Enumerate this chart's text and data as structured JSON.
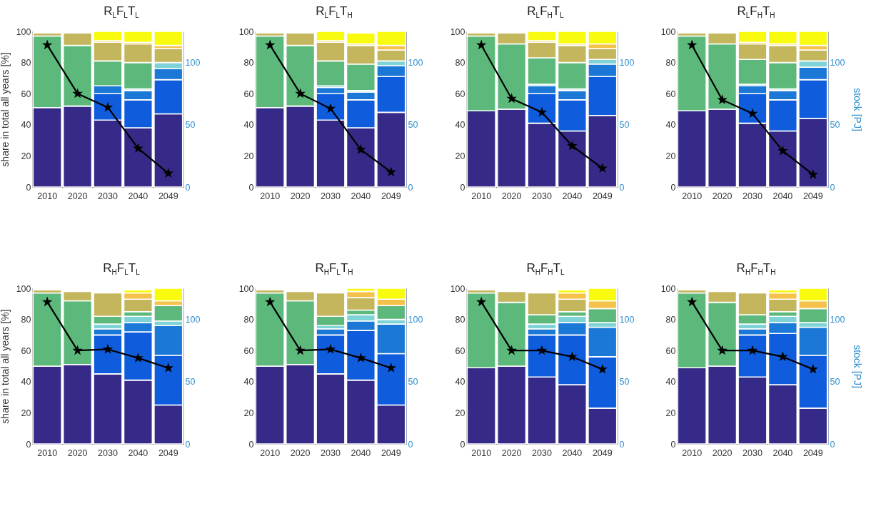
{
  "chart_data": [
    {
      "type": "bar",
      "stacked": true,
      "title": "R$_{L}$F$_{L}$T$_{L}$",
      "ylabel": "share in total all years [%]",
      "categories": [
        "2010",
        "2020",
        "2030",
        "2040",
        "2049"
      ],
      "ylim": [
        0,
        100
      ],
      "yticks": [
        0,
        20,
        40,
        60,
        80,
        100
      ],
      "y2lim": [
        0,
        125
      ],
      "y2ticks": [
        0,
        50,
        100
      ],
      "marker": "star",
      "series": [
        {
          "color": "#352a87",
          "values": [
            51,
            52,
            43,
            38,
            47
          ]
        },
        {
          "color": "#0f5cdd",
          "values": [
            null,
            null,
            17,
            18,
            22
          ]
        },
        {
          "color": "#1c78d6",
          "values": [
            null,
            null,
            5,
            6,
            7
          ]
        },
        {
          "color": "#7fd3d6",
          "values": [
            null,
            null,
            null,
            1,
            4
          ]
        },
        {
          "color": "#5cb97b",
          "values": [
            46,
            39,
            16,
            17,
            null
          ]
        },
        {
          "color": "#c3b65c",
          "values": [
            2,
            8,
            12,
            12,
            9
          ]
        },
        {
          "color": "#f4c24a",
          "values": [
            null,
            null,
            1,
            1,
            2
          ]
        },
        {
          "color": "#f9fb0e",
          "values": [
            null,
            null,
            6,
            7,
            9
          ]
        },
        {
          "type": "line",
          "axis": "y2",
          "color": "#000000",
          "values": [
            114,
            75,
            64,
            31,
            11
          ]
        }
      ]
    },
    {
      "type": "bar",
      "stacked": true,
      "title": "R$_{L}$F$_{L}$T$_{H}$",
      "categories": [
        "2010",
        "2020",
        "2030",
        "2040",
        "2049"
      ],
      "ylim": [
        0,
        100
      ],
      "yticks": [
        0,
        20,
        40,
        60,
        80,
        100
      ],
      "y2lim": [
        0,
        125
      ],
      "y2ticks": [
        0,
        50,
        100
      ],
      "marker": "star",
      "series": [
        {
          "color": "#352a87",
          "values": [
            51,
            52,
            43,
            38,
            48
          ]
        },
        {
          "color": "#0f5cdd",
          "values": [
            null,
            null,
            17,
            18,
            23
          ]
        },
        {
          "color": "#1c78d6",
          "values": [
            null,
            null,
            4,
            5,
            7
          ]
        },
        {
          "color": "#7fd3d6",
          "values": [
            null,
            null,
            1,
            1,
            3
          ]
        },
        {
          "color": "#5cb97b",
          "values": [
            46,
            39,
            16,
            17,
            null
          ]
        },
        {
          "color": "#c3b65c",
          "values": [
            2,
            8,
            12,
            12,
            7
          ]
        },
        {
          "color": "#f4c24a",
          "values": [
            null,
            null,
            1,
            1,
            3
          ]
        },
        {
          "color": "#f9fb0e",
          "values": [
            null,
            null,
            6,
            7,
            9
          ]
        },
        {
          "type": "line",
          "axis": "y2",
          "color": "#000000",
          "values": [
            114,
            75,
            63,
            30,
            12
          ]
        }
      ]
    },
    {
      "type": "bar",
      "stacked": true,
      "title": "R$_{L}$F$_{H}$T$_{L}$",
      "categories": [
        "2010",
        "2020",
        "2030",
        "2040",
        "2049"
      ],
      "ylim": [
        0,
        100
      ],
      "yticks": [
        0,
        20,
        40,
        60,
        80,
        100
      ],
      "y2lim": [
        0,
        125
      ],
      "y2ticks": [
        0,
        50,
        100
      ],
      "marker": "star",
      "series": [
        {
          "color": "#352a87",
          "values": [
            49,
            50,
            41,
            36,
            46
          ]
        },
        {
          "color": "#0f5cdd",
          "values": [
            null,
            null,
            19,
            20,
            25
          ]
        },
        {
          "color": "#1c78d6",
          "values": [
            null,
            null,
            5,
            6,
            8
          ]
        },
        {
          "color": "#7fd3d6",
          "values": [
            null,
            null,
            1,
            1,
            3
          ]
        },
        {
          "color": "#5cb97b",
          "values": [
            48,
            42,
            17,
            17,
            null
          ]
        },
        {
          "color": "#c3b65c",
          "values": [
            2,
            7,
            10,
            11,
            7
          ]
        },
        {
          "color": "#f4c24a",
          "values": [
            null,
            null,
            1,
            1,
            3
          ]
        },
        {
          "color": "#f9fb0e",
          "values": [
            null,
            null,
            6,
            8,
            8
          ]
        },
        {
          "type": "line",
          "axis": "y2",
          "color": "#000000",
          "values": [
            114,
            71,
            60,
            33,
            15
          ]
        }
      ]
    },
    {
      "type": "bar",
      "stacked": true,
      "title": "R$_{L}$F$_{H}$T$_{H}$",
      "y2label": "stock [PJ]",
      "categories": [
        "2010",
        "2020",
        "2030",
        "2040",
        "2049"
      ],
      "ylim": [
        0,
        100
      ],
      "yticks": [
        0,
        20,
        40,
        60,
        80,
        100
      ],
      "y2lim": [
        0,
        125
      ],
      "y2ticks": [
        0,
        50,
        100
      ],
      "marker": "star",
      "series": [
        {
          "color": "#352a87",
          "values": [
            49,
            50,
            41,
            36,
            44
          ]
        },
        {
          "color": "#0f5cdd",
          "values": [
            null,
            null,
            19,
            20,
            25
          ]
        },
        {
          "color": "#1c78d6",
          "values": [
            null,
            null,
            5,
            6,
            8
          ]
        },
        {
          "color": "#7fd3d6",
          "values": [
            null,
            null,
            1,
            1,
            4
          ]
        },
        {
          "color": "#5cb97b",
          "values": [
            48,
            42,
            16,
            17,
            null
          ]
        },
        {
          "color": "#c3b65c",
          "values": [
            2,
            7,
            10,
            11,
            7
          ]
        },
        {
          "color": "#f4c24a",
          "values": [
            null,
            null,
            1,
            1,
            3
          ]
        },
        {
          "color": "#f9fb0e",
          "values": [
            null,
            null,
            7,
            8,
            9
          ]
        },
        {
          "type": "line",
          "axis": "y2",
          "color": "#000000",
          "values": [
            114,
            70,
            59,
            29,
            10
          ]
        }
      ]
    },
    {
      "type": "bar",
      "stacked": true,
      "title": "R$_{H}$F$_{L}$T$_{L}$",
      "ylabel": "share in total all years [%]",
      "categories": [
        "2010",
        "2020",
        "2030",
        "2040",
        "2049"
      ],
      "ylim": [
        0,
        100
      ],
      "yticks": [
        0,
        20,
        40,
        60,
        80,
        100
      ],
      "y2lim": [
        0,
        125
      ],
      "y2ticks": [
        0,
        50,
        100
      ],
      "marker": "star",
      "series": [
        {
          "color": "#352a87",
          "values": [
            50,
            51,
            45,
            41,
            25
          ]
        },
        {
          "color": "#0f5cdd",
          "values": [
            null,
            null,
            25,
            31,
            32
          ]
        },
        {
          "color": "#1c78d6",
          "values": [
            null,
            null,
            4,
            6,
            19
          ]
        },
        {
          "color": "#7fd3d6",
          "values": [
            null,
            null,
            3,
            4,
            3
          ]
        },
        {
          "color": "#5cb97b",
          "values": [
            47,
            41,
            5,
            3,
            10
          ]
        },
        {
          "color": "#c3b65c",
          "values": [
            2,
            6,
            15,
            8,
            null
          ]
        },
        {
          "color": "#f4c24a",
          "values": [
            null,
            null,
            null,
            4,
            3
          ]
        },
        {
          "color": "#f9fb0e",
          "values": [
            null,
            null,
            null,
            2,
            8
          ]
        },
        {
          "type": "line",
          "axis": "y2",
          "color": "#000000",
          "values": [
            114,
            75,
            76,
            69,
            61
          ]
        }
      ]
    },
    {
      "type": "bar",
      "stacked": true,
      "title": "R$_{H}$F$_{L}$T$_{H}$",
      "categories": [
        "2010",
        "2020",
        "2030",
        "2040",
        "2049"
      ],
      "ylim": [
        0,
        100
      ],
      "yticks": [
        0,
        20,
        40,
        60,
        80,
        100
      ],
      "y2lim": [
        0,
        125
      ],
      "y2ticks": [
        0,
        50,
        100
      ],
      "marker": "star",
      "series": [
        {
          "color": "#352a87",
          "values": [
            50,
            51,
            45,
            41,
            25
          ]
        },
        {
          "color": "#0f5cdd",
          "values": [
            null,
            null,
            25,
            32,
            33
          ]
        },
        {
          "color": "#1c78d6",
          "values": [
            null,
            null,
            4,
            6,
            19
          ]
        },
        {
          "color": "#7fd3d6",
          "values": [
            null,
            null,
            2,
            4,
            3
          ]
        },
        {
          "color": "#5cb97b",
          "values": [
            47,
            41,
            6,
            3,
            9
          ]
        },
        {
          "color": "#c3b65c",
          "values": [
            2,
            6,
            15,
            8,
            null
          ]
        },
        {
          "color": "#f4c24a",
          "values": [
            null,
            null,
            null,
            4,
            4
          ]
        },
        {
          "color": "#f9fb0e",
          "values": [
            null,
            null,
            null,
            2,
            7
          ]
        },
        {
          "type": "line",
          "axis": "y2",
          "color": "#000000",
          "values": [
            114,
            75,
            76,
            69,
            61
          ]
        }
      ]
    },
    {
      "type": "bar",
      "stacked": true,
      "title": "R$_{H}$F$_{H}$T$_{L}$",
      "categories": [
        "2010",
        "2020",
        "2030",
        "2040",
        "2049"
      ],
      "ylim": [
        0,
        100
      ],
      "yticks": [
        0,
        20,
        40,
        60,
        80,
        100
      ],
      "y2lim": [
        0,
        125
      ],
      "y2ticks": [
        0,
        50,
        100
      ],
      "marker": "star",
      "series": [
        {
          "color": "#352a87",
          "values": [
            49,
            50,
            43,
            38,
            23
          ]
        },
        {
          "color": "#0f5cdd",
          "values": [
            null,
            null,
            27,
            32,
            33
          ]
        },
        {
          "color": "#1c78d6",
          "values": [
            null,
            null,
            4,
            8,
            19
          ]
        },
        {
          "color": "#7fd3d6",
          "values": [
            null,
            null,
            3,
            4,
            3
          ]
        },
        {
          "color": "#5cb97b",
          "values": [
            48,
            41,
            6,
            3,
            9
          ]
        },
        {
          "color": "#c3b65c",
          "values": [
            2,
            7,
            14,
            8,
            null
          ]
        },
        {
          "color": "#f4c24a",
          "values": [
            null,
            null,
            null,
            4,
            5
          ]
        },
        {
          "color": "#f9fb0e",
          "values": [
            null,
            null,
            null,
            2,
            8
          ]
        },
        {
          "type": "line",
          "axis": "y2",
          "color": "#000000",
          "values": [
            114,
            75,
            75,
            70,
            60
          ]
        }
      ]
    },
    {
      "type": "bar",
      "stacked": true,
      "title": "R$_{H}$F$_{H}$T$_{H}$",
      "y2label": "stock [PJ]",
      "categories": [
        "2010",
        "2020",
        "2030",
        "2040",
        "2049"
      ],
      "ylim": [
        0,
        100
      ],
      "yticks": [
        0,
        20,
        40,
        60,
        80,
        100
      ],
      "y2lim": [
        0,
        125
      ],
      "y2ticks": [
        0,
        50,
        100
      ],
      "marker": "star",
      "series": [
        {
          "color": "#352a87",
          "values": [
            49,
            50,
            43,
            38,
            23
          ]
        },
        {
          "color": "#0f5cdd",
          "values": [
            null,
            null,
            27,
            33,
            34
          ]
        },
        {
          "color": "#1c78d6",
          "values": [
            null,
            null,
            4,
            7,
            18
          ]
        },
        {
          "color": "#7fd3d6",
          "values": [
            null,
            null,
            3,
            4,
            3
          ]
        },
        {
          "color": "#5cb97b",
          "values": [
            48,
            41,
            6,
            3,
            9
          ]
        },
        {
          "color": "#c3b65c",
          "values": [
            2,
            7,
            14,
            8,
            null
          ]
        },
        {
          "color": "#f4c24a",
          "values": [
            null,
            null,
            null,
            4,
            5
          ]
        },
        {
          "color": "#f9fb0e",
          "values": [
            null,
            null,
            null,
            2,
            8
          ]
        },
        {
          "type": "line",
          "axis": "y2",
          "color": "#000000",
          "values": [
            114,
            75,
            75,
            70,
            60
          ]
        }
      ]
    }
  ]
}
